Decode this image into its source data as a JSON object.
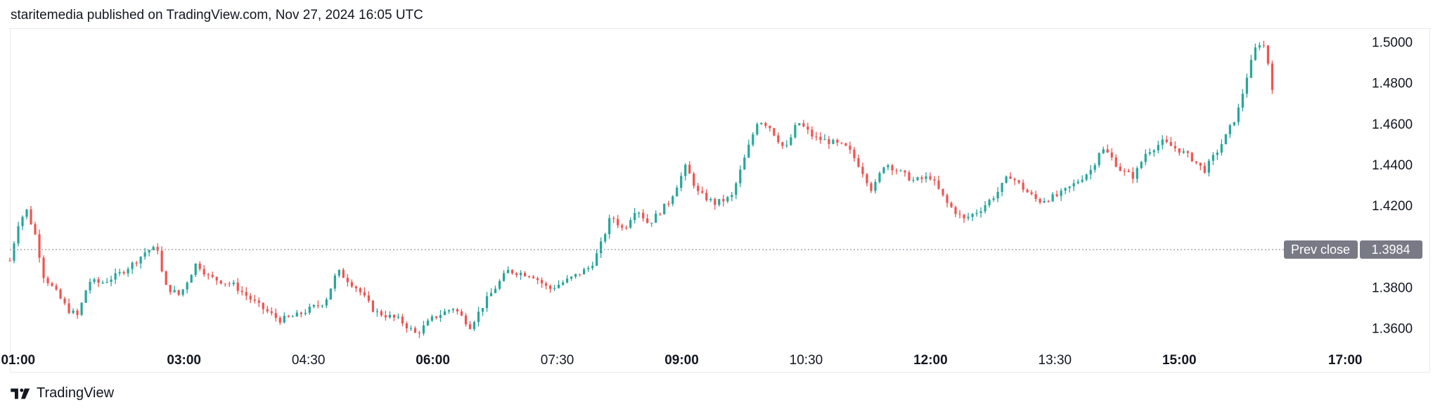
{
  "header": {
    "text": "staritemedia published on TradingView.com, Nov 27, 2024 16:05 UTC"
  },
  "footer": {
    "brand": "TradingView",
    "logo_icon": "tradingview-logo-icon"
  },
  "colors": {
    "up": "#26a69a",
    "down": "#ef5350",
    "axis_text": "#131722",
    "prev_close_bg": "#787b86",
    "grid": "#e6e8ec"
  },
  "chart_data": {
    "type": "candlestick",
    "title": "",
    "xlabel": "",
    "ylabel": "",
    "ylim": [
      1.352,
      1.506
    ],
    "y_ticks": [
      "1.5000",
      "1.4800",
      "1.4600",
      "1.4400",
      "1.4200",
      "1.3800",
      "1.3600"
    ],
    "x_ticks": [
      {
        "label": "01:00",
        "bold": true,
        "time": 1.0
      },
      {
        "label": "03:00",
        "bold": true,
        "time": 3.0
      },
      {
        "label": "04:30",
        "bold": false,
        "time": 4.5
      },
      {
        "label": "06:00",
        "bold": true,
        "time": 6.0
      },
      {
        "label": "07:30",
        "bold": false,
        "time": 7.5
      },
      {
        "label": "09:00",
        "bold": true,
        "time": 9.0
      },
      {
        "label": "10:30",
        "bold": false,
        "time": 10.5
      },
      {
        "label": "12:00",
        "bold": true,
        "time": 12.0
      },
      {
        "label": "13:30",
        "bold": false,
        "time": 13.5
      },
      {
        "label": "15:00",
        "bold": true,
        "time": 15.0
      },
      {
        "label": "17:00",
        "bold": true,
        "time": 17.0
      }
    ],
    "x_range": [
      0.9,
      17.1
    ],
    "prev_close": {
      "label": "Prev close",
      "value": "1.3984",
      "value_num": 1.3984
    },
    "price_path": [
      [
        0.9,
        1.393
      ],
      [
        1.0,
        1.411
      ],
      [
        1.1,
        1.418
      ],
      [
        1.22,
        1.404
      ],
      [
        1.3,
        1.386
      ],
      [
        1.45,
        1.378
      ],
      [
        1.6,
        1.369
      ],
      [
        1.72,
        1.366
      ],
      [
        1.85,
        1.383
      ],
      [
        2.0,
        1.382
      ],
      [
        2.2,
        1.386
      ],
      [
        2.4,
        1.392
      ],
      [
        2.55,
        1.398
      ],
      [
        2.7,
        1.399
      ],
      [
        2.75,
        1.381
      ],
      [
        2.95,
        1.376
      ],
      [
        3.15,
        1.392
      ],
      [
        3.3,
        1.385
      ],
      [
        3.6,
        1.381
      ],
      [
        3.9,
        1.371
      ],
      [
        4.15,
        1.364
      ],
      [
        4.35,
        1.366
      ],
      [
        4.7,
        1.373
      ],
      [
        4.85,
        1.388
      ],
      [
        5.1,
        1.379
      ],
      [
        5.3,
        1.368
      ],
      [
        5.6,
        1.364
      ],
      [
        5.8,
        1.357
      ],
      [
        6.0,
        1.365
      ],
      [
        6.25,
        1.37
      ],
      [
        6.45,
        1.361
      ],
      [
        6.65,
        1.374
      ],
      [
        6.9,
        1.388
      ],
      [
        7.2,
        1.386
      ],
      [
        7.4,
        1.379
      ],
      [
        7.65,
        1.384
      ],
      [
        7.9,
        1.39
      ],
      [
        8.0,
        1.398
      ],
      [
        8.15,
        1.415
      ],
      [
        8.3,
        1.408
      ],
      [
        8.45,
        1.419
      ],
      [
        8.6,
        1.411
      ],
      [
        8.85,
        1.422
      ],
      [
        9.05,
        1.439
      ],
      [
        9.2,
        1.426
      ],
      [
        9.4,
        1.421
      ],
      [
        9.6,
        1.424
      ],
      [
        9.75,
        1.442
      ],
      [
        9.92,
        1.462
      ],
      [
        10.05,
        1.459
      ],
      [
        10.25,
        1.447
      ],
      [
        10.4,
        1.461
      ],
      [
        10.6,
        1.453
      ],
      [
        10.8,
        1.451
      ],
      [
        11.0,
        1.448
      ],
      [
        11.15,
        1.439
      ],
      [
        11.3,
        1.427
      ],
      [
        11.45,
        1.441
      ],
      [
        11.6,
        1.437
      ],
      [
        11.8,
        1.432
      ],
      [
        12.0,
        1.434
      ],
      [
        12.2,
        1.421
      ],
      [
        12.4,
        1.413
      ],
      [
        12.6,
        1.418
      ],
      [
        12.8,
        1.426
      ],
      [
        12.95,
        1.435
      ],
      [
        13.15,
        1.427
      ],
      [
        13.3,
        1.422
      ],
      [
        13.55,
        1.425
      ],
      [
        13.75,
        1.431
      ],
      [
        13.95,
        1.438
      ],
      [
        14.05,
        1.448
      ],
      [
        14.15,
        1.445
      ],
      [
        14.3,
        1.437
      ],
      [
        14.45,
        1.434
      ],
      [
        14.6,
        1.446
      ],
      [
        14.8,
        1.451
      ],
      [
        15.0,
        1.447
      ],
      [
        15.15,
        1.443
      ],
      [
        15.3,
        1.437
      ],
      [
        15.45,
        1.446
      ],
      [
        15.55,
        1.453
      ],
      [
        15.7,
        1.465
      ],
      [
        15.82,
        1.484
      ],
      [
        15.92,
        1.497
      ],
      [
        16.0,
        1.501
      ],
      [
        16.08,
        1.488
      ],
      [
        16.12,
        1.478
      ]
    ],
    "candle_count": 300,
    "time_axis_note": "x values are hours of the day (UTC)"
  }
}
